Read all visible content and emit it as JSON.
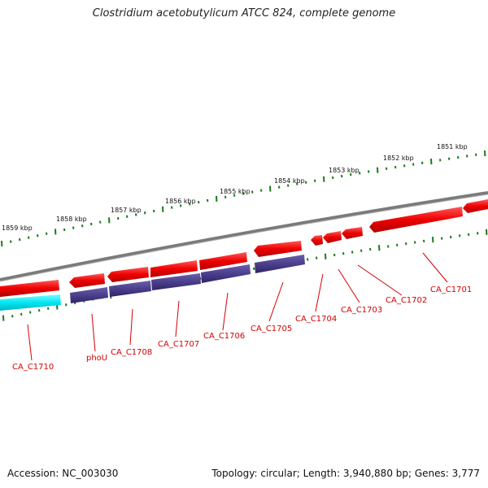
{
  "title": "Clostridium acetobutylicum ATCC 824, complete genome",
  "footer": {
    "accession": "Accession: NC_003030",
    "topology": "Topology: circular; Length: 3,940,880 bp; Genes: 3,777"
  },
  "colors": {
    "forward_gene": "#ee0000",
    "reverse_cds": "#4b3f8c",
    "rna": "#00e6f2",
    "backbone": "#8a8a8a",
    "tick": "#1a7a1a",
    "label": "#d40000"
  },
  "ruler_labels": [
    "1859 kbp",
    "1858 kbp",
    "1857 kbp",
    "1856 kbp",
    "1855 kbp",
    "1854 kbp",
    "1853 kbp",
    "1852 kbp",
    "1851 kbp"
  ],
  "gene_labels": [
    "CA_C1710",
    "phoU",
    "CA_C1708",
    "CA_C1707",
    "CA_C1706",
    "CA_C1705",
    "CA_C1704",
    "CA_C1703",
    "CA_C1702",
    "CA_C1701"
  ]
}
